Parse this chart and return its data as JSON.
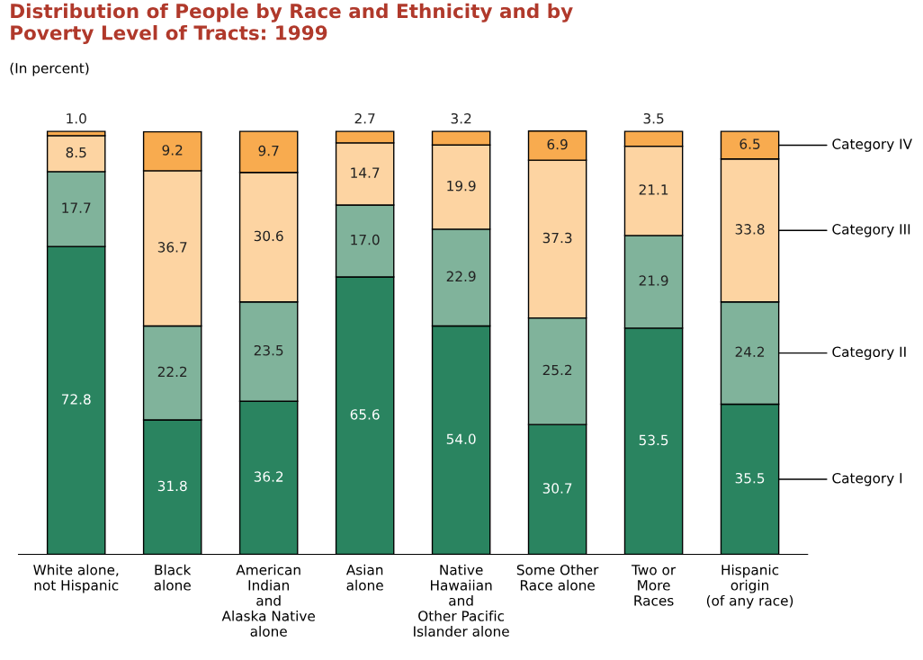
{
  "chart_data": {
    "type": "bar",
    "stacked": true,
    "title": "Distribution of People by Race and Ethnicity and by\nPoverty Level of Tracts: 1999",
    "subtitle": "(In percent)",
    "categories": [
      "White alone,\nnot Hispanic",
      "Black\nalone",
      "American\nIndian\nand\nAlaska Native\nalone",
      "Asian\nalone",
      "Native\nHawaiian\nand\nOther Pacific\nIslander alone",
      "Some Other\nRace alone",
      "Two or\nMore\nRaces",
      "Hispanic\norigin\n(of any race)"
    ],
    "series": [
      {
        "name": "Category I",
        "color": "#2a8460",
        "values": [
          72.8,
          31.8,
          36.2,
          65.6,
          54.0,
          30.7,
          53.5,
          35.5
        ],
        "value_labels": [
          "72.8",
          "31.8",
          "36.2",
          "65.6",
          "54.0",
          "30.7",
          "53.5",
          "35.5"
        ]
      },
      {
        "name": "Category II",
        "color": "#80b39b",
        "values": [
          17.7,
          22.2,
          23.5,
          17.0,
          22.9,
          25.2,
          21.9,
          24.2
        ],
        "value_labels": [
          "17.7",
          "22.2",
          "23.5",
          "17.0",
          "22.9",
          "25.2",
          "21.9",
          "24.2"
        ]
      },
      {
        "name": "Category III",
        "color": "#fdd4a2",
        "values": [
          8.5,
          36.7,
          30.6,
          14.7,
          19.9,
          37.3,
          21.1,
          33.8
        ],
        "value_labels": [
          "8.5",
          "36.7",
          "30.6",
          "14.7",
          "19.9",
          "37.3",
          "21.1",
          "33.8"
        ]
      },
      {
        "name": "Category IV",
        "color": "#f8ab4f",
        "values": [
          1.0,
          9.2,
          9.7,
          2.7,
          3.2,
          6.9,
          3.5,
          6.5
        ],
        "value_labels": [
          "1.0",
          "9.2",
          "9.7",
          "2.7",
          "3.2",
          "6.9",
          "3.5",
          "6.5"
        ]
      }
    ],
    "grid": false,
    "legend": "right"
  }
}
